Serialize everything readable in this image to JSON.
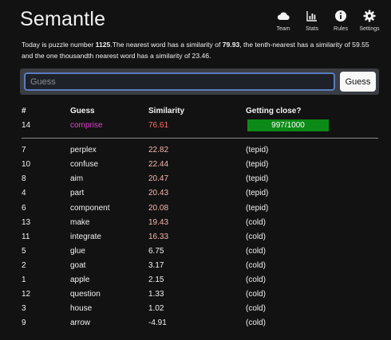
{
  "app": {
    "logo": "Semantle"
  },
  "nav": [
    {
      "label": "Team",
      "icon": "cloud-icon"
    },
    {
      "label": "Stats",
      "icon": "bar-chart-icon"
    },
    {
      "label": "Rules",
      "icon": "info-icon"
    },
    {
      "label": "Settings",
      "icon": "gear-icon"
    }
  ],
  "intro": {
    "prefix": "Today is puzzle number ",
    "puzzle_number": "1125",
    "middle1": ".The nearest word has a similarity of ",
    "nearest": "79.93",
    "middle2": ", the tenth-nearest has a similarity of 59.55 and the one thousandth nearest word has a similarity of 23.46."
  },
  "guess_form": {
    "placeholder": "Guess",
    "value": "",
    "button_label": "Guess"
  },
  "table": {
    "headers": {
      "num": "#",
      "guess": "Guess",
      "similarity": "Similarity",
      "close": "Getting close?"
    },
    "latest": {
      "num": "14",
      "word": "comprise",
      "similarity": "76.61",
      "close": "997/1000",
      "progress": 0.997
    },
    "rows": [
      {
        "num": "7",
        "word": "perplex",
        "similarity": "22.82",
        "close": "(tepid)"
      },
      {
        "num": "10",
        "word": "confuse",
        "similarity": "22.44",
        "close": "(tepid)"
      },
      {
        "num": "8",
        "word": "aim",
        "similarity": "20.47",
        "close": "(tepid)"
      },
      {
        "num": "4",
        "word": "part",
        "similarity": "20.43",
        "close": "(tepid)"
      },
      {
        "num": "6",
        "word": "component",
        "similarity": "20.08",
        "close": "(tepid)"
      },
      {
        "num": "13",
        "word": "make",
        "similarity": "19.43",
        "close": "(cold)"
      },
      {
        "num": "11",
        "word": "integrate",
        "similarity": "16.33",
        "close": "(cold)"
      },
      {
        "num": "5",
        "word": "glue",
        "similarity": "6.75",
        "close": "(cold)"
      },
      {
        "num": "2",
        "word": "goat",
        "similarity": "3.17",
        "close": "(cold)"
      },
      {
        "num": "1",
        "word": "apple",
        "similarity": "2.15",
        "close": "(cold)"
      },
      {
        "num": "12",
        "word": "question",
        "similarity": "1.33",
        "close": "(cold)"
      },
      {
        "num": "3",
        "word": "house",
        "similarity": "1.02",
        "close": "(cold)"
      },
      {
        "num": "9",
        "word": "arrow",
        "similarity": "-4.91",
        "close": "(cold)"
      }
    ]
  },
  "colors": {
    "background": "#121212",
    "latest_guess": "#e040d0",
    "latest_similarity": "#ff6b6b",
    "warm_similarity": "#f4b8b0",
    "neutral": "#f2f2f2",
    "progress_bar": "#0c8a17"
  }
}
